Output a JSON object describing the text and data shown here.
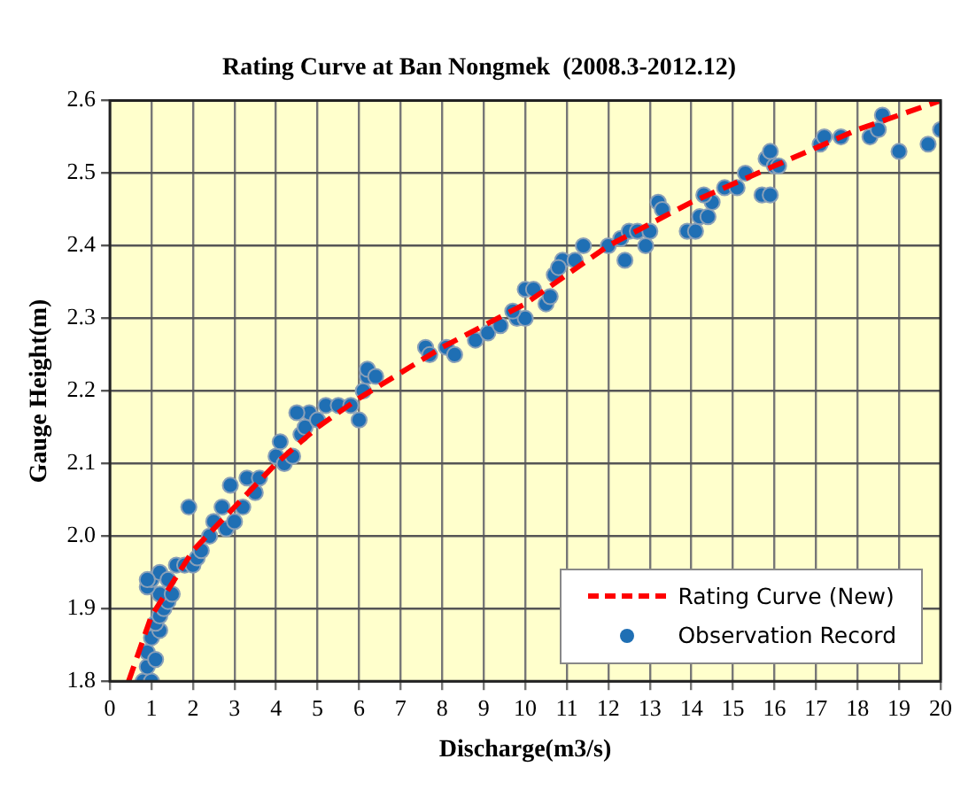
{
  "chart_data": {
    "type": "scatter",
    "title": "Rating Curve at Ban Nongmek  (2008.3-2012.12)",
    "xlabel": "Discharge(m3/s)",
    "ylabel": "Gauge Height(m)",
    "xlim": [
      0,
      20
    ],
    "xticks": [
      0,
      1,
      2,
      3,
      4,
      5,
      6,
      7,
      8,
      9,
      10,
      11,
      12,
      13,
      14,
      15,
      16,
      17,
      18,
      19,
      20
    ],
    "ylim": [
      1.8,
      2.6
    ],
    "yticks": [
      1.8,
      1.9,
      {
        "value": 2,
        "label": "2.0"
      },
      2.1,
      2.2,
      2.3,
      2.4,
      2.5,
      2.6
    ],
    "grid": true,
    "legend": "bottom right",
    "series": [
      {
        "name": "Rating Curve (New)",
        "type": "line",
        "color": "#ff0000",
        "line_style": "dashed",
        "marker": "none",
        "x": [
          0.45,
          1,
          2,
          3,
          4,
          5,
          6,
          8,
          10,
          12,
          14,
          16,
          18,
          20
        ],
        "values": [
          1.8,
          1.89,
          1.98,
          2.04,
          2.1,
          2.15,
          2.19,
          2.26,
          2.32,
          2.4,
          2.46,
          2.51,
          2.56,
          2.6
        ]
      },
      {
        "name": "Observation Record",
        "type": "scatter",
        "color": "#1f6fb4",
        "marker": "circle",
        "x": [
          0.8,
          1.0,
          0.9,
          0.9,
          1.1,
          1.0,
          1.2,
          1.1,
          1.2,
          1.3,
          1.4,
          1.2,
          0.9,
          1.0,
          1.2,
          1.4,
          1.5,
          0.9,
          1.6,
          1.8,
          2.0,
          2.1,
          2.2,
          1.9,
          2.4,
          2.5,
          2.8,
          2.7,
          3.0,
          3.2,
          3.5,
          3.3,
          2.9,
          3.6,
          4.0,
          4.2,
          4.1,
          4.4,
          4.6,
          4.7,
          4.8,
          4.5,
          5.0,
          5.2,
          5.5,
          5.8,
          6.0,
          6.1,
          6.2,
          6.2,
          6.4,
          7.6,
          7.7,
          8.1,
          8.3,
          8.8,
          9.1,
          9.4,
          9.8,
          10.0,
          9.7,
          10.0,
          10.2,
          10.5,
          10.6,
          10.7,
          10.9,
          10.8,
          11.2,
          11.4,
          12.0,
          12.3,
          12.5,
          12.7,
          13.0,
          12.9,
          12.4,
          13.2,
          13.3,
          13.9,
          14.1,
          14.2,
          14.4,
          14.5,
          14.3,
          14.8,
          15.1,
          15.3,
          15.7,
          15.8,
          15.9,
          16.0,
          16.1,
          15.9,
          17.1,
          17.2,
          17.6,
          18.3,
          18.5,
          18.6,
          19.0,
          19.7,
          20.0
        ],
        "values": [
          1.8,
          1.8,
          1.82,
          1.84,
          1.83,
          1.86,
          1.87,
          1.88,
          1.89,
          1.9,
          1.91,
          1.92,
          1.93,
          1.94,
          1.95,
          1.94,
          1.92,
          1.94,
          1.96,
          1.96,
          1.96,
          1.97,
          1.98,
          2.04,
          2.0,
          2.02,
          2.01,
          2.04,
          2.02,
          2.04,
          2.06,
          2.08,
          2.07,
          2.08,
          2.11,
          2.1,
          2.13,
          2.11,
          2.14,
          2.15,
          2.17,
          2.17,
          2.16,
          2.18,
          2.18,
          2.18,
          2.16,
          2.2,
          2.22,
          2.23,
          2.22,
          2.26,
          2.25,
          2.26,
          2.25,
          2.27,
          2.28,
          2.29,
          2.3,
          2.3,
          2.31,
          2.34,
          2.34,
          2.32,
          2.33,
          2.36,
          2.38,
          2.37,
          2.38,
          2.4,
          2.4,
          2.41,
          2.42,
          2.42,
          2.42,
          2.4,
          2.38,
          2.46,
          2.45,
          2.42,
          2.42,
          2.44,
          2.44,
          2.46,
          2.47,
          2.48,
          2.48,
          2.5,
          2.47,
          2.52,
          2.53,
          2.51,
          2.51,
          2.47,
          2.54,
          2.55,
          2.55,
          2.55,
          2.56,
          2.58,
          2.53,
          2.54,
          2.56
        ]
      }
    ]
  }
}
